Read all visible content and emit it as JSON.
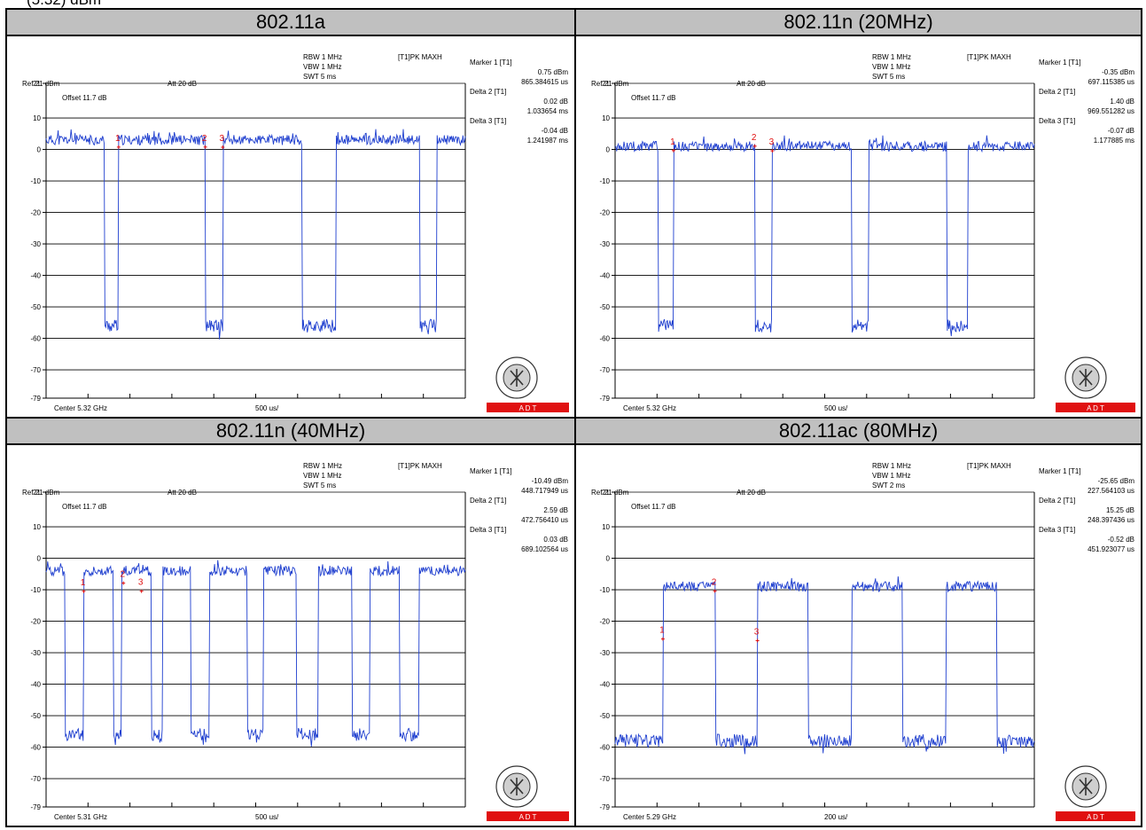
{
  "top_fragment": "(5.32) dBm",
  "panels": [
    {
      "title": "802.11a",
      "ref": "Ref 21 dBm",
      "att": "Att  20 dB",
      "offset": "Offset 11.7 dB",
      "rbw": "RBW 1 MHz",
      "vbw": "VBW 1 MHz",
      "swt": "SWT 5 ms",
      "trace_label": "[T1]PK MAXH",
      "center": "Center 5.32 GHz",
      "span_per_div": "500 us/",
      "markers": [
        {
          "label": "Marker 1 [T1]",
          "v1": "0.75 dBm",
          "v2": "865.384615 us"
        },
        {
          "label": "Delta 2 [T1]",
          "v1": "0.02 dB",
          "v2": "1.033654 ms"
        },
        {
          "label": "Delta 3 [T1]",
          "v1": "-0.04 dB",
          "v2": "1.241987 ms"
        }
      ],
      "logo": "A  D  T"
    },
    {
      "title": "802.11n (20MHz)",
      "ref": "Ref 21 dBm",
      "att": "Att  20 dB",
      "offset": "Offset 11.7 dB",
      "rbw": "RBW 1 MHz",
      "vbw": "VBW 1 MHz",
      "swt": "SWT 5 ms",
      "trace_label": "[T1]PK MAXH",
      "center": "Center 5.32 GHz",
      "span_per_div": "500 us/",
      "markers": [
        {
          "label": "Marker 1 [T1]",
          "v1": "-0.35 dBm",
          "v2": "697.115385 us"
        },
        {
          "label": "Delta 2 [T1]",
          "v1": "1.40 dB",
          "v2": "969.551282 us"
        },
        {
          "label": "Delta 3 [T1]",
          "v1": "-0.07 dB",
          "v2": "1.177885 ms"
        }
      ],
      "logo": "A  D  T"
    },
    {
      "title": "802.11n (40MHz)",
      "ref": "Ref 21 dBm",
      "att": "Att  20 dB",
      "offset": "Offset 11.7 dB",
      "rbw": "RBW 1 MHz",
      "vbw": "VBW 1 MHz",
      "swt": "SWT 5 ms",
      "trace_label": "[T1]PK MAXH",
      "center": "Center 5.31 GHz",
      "span_per_div": "500 us/",
      "markers": [
        {
          "label": "Marker 1 [T1]",
          "v1": "-10.49 dBm",
          "v2": "448.717949 us"
        },
        {
          "label": "Delta 2 [T1]",
          "v1": "2.59 dB",
          "v2": "472.756410 us"
        },
        {
          "label": "Delta 3 [T1]",
          "v1": "0.03 dB",
          "v2": "689.102564 us"
        }
      ],
      "logo": "A  D  T"
    },
    {
      "title": "802.11ac (80MHz)",
      "ref": "Ref 21 dBm",
      "att": "Att  20 dB",
      "offset": "Offset 11.7 dB",
      "rbw": "RBW 1 MHz",
      "vbw": "VBW 1 MHz",
      "swt": "SWT 2 ms",
      "trace_label": "[T1]PK MAXH",
      "center": "Center 5.29 GHz",
      "span_per_div": "200 us/",
      "markers": [
        {
          "label": "Marker 1 [T1]",
          "v1": "-25.65 dBm",
          "v2": "227.564103 us"
        },
        {
          "label": "Delta 2 [T1]",
          "v1": "15.25 dB",
          "v2": "248.397436 us"
        },
        {
          "label": "Delta 3 [T1]",
          "v1": "-0.52 dB",
          "v2": "451.923077 us"
        }
      ],
      "logo": "A  D  T"
    }
  ],
  "colors": {
    "trace": "#1f3fcf",
    "marker": "#e01010",
    "grid": "#000000",
    "header_bg": "#c0c0c0",
    "logo_red": "#e01010"
  },
  "chart_data": [
    {
      "type": "line",
      "title": "802.11a",
      "y_ticks": [
        21,
        10,
        0,
        -10,
        -20,
        -30,
        -40,
        -50,
        -60,
        -70,
        -79
      ],
      "ylim": [
        -79,
        21
      ],
      "xlim": [
        0,
        5000
      ],
      "x_unit": "us",
      "high_level_db": 3,
      "low_level_db": -56,
      "bursts": [
        [
          0,
          700
        ],
        [
          865,
          1900
        ],
        [
          2107,
          3050
        ],
        [
          3460,
          4460
        ],
        [
          4660,
          5000
        ]
      ],
      "markers": [
        {
          "n": "1",
          "x": 865,
          "y": 0.75
        },
        {
          "n": "2",
          "x": 1899,
          "y": 0.77
        },
        {
          "n": "3",
          "x": 2107,
          "y": 0.71
        }
      ]
    },
    {
      "type": "line",
      "title": "802.11n (20MHz)",
      "y_ticks": [
        21,
        10,
        0,
        -10,
        -20,
        -30,
        -40,
        -50,
        -60,
        -70,
        -79
      ],
      "ylim": [
        -79,
        21
      ],
      "xlim": [
        0,
        5000
      ],
      "x_unit": "us",
      "high_level_db": 1,
      "low_level_db": -56,
      "bursts": [
        [
          0,
          510
        ],
        [
          697,
          1670
        ],
        [
          1875,
          2820
        ],
        [
          3020,
          3960
        ],
        [
          4210,
          5000
        ]
      ],
      "markers": [
        {
          "n": "1",
          "x": 697,
          "y": -0.35
        },
        {
          "n": "2",
          "x": 1667,
          "y": 1.05
        },
        {
          "n": "3",
          "x": 1875,
          "y": -0.42
        }
      ]
    },
    {
      "type": "line",
      "title": "802.11n (40MHz)",
      "y_ticks": [
        21,
        10,
        0,
        -10,
        -20,
        -30,
        -40,
        -50,
        -60,
        -70,
        -79
      ],
      "ylim": [
        -79,
        21
      ],
      "xlim": [
        0,
        5000
      ],
      "x_unit": "us",
      "high_level_db": -4,
      "low_level_db": -56,
      "bursts": [
        [
          0,
          230
        ],
        [
          449,
          800
        ],
        [
          900,
          1250
        ],
        [
          1390,
          1730
        ],
        [
          1950,
          2400
        ],
        [
          2590,
          2990
        ],
        [
          3250,
          3650
        ],
        [
          3860,
          4220
        ],
        [
          4450,
          5000
        ]
      ],
      "markers": [
        {
          "n": "1",
          "x": 449,
          "y": -10.49
        },
        {
          "n": "2",
          "x": 922,
          "y": -7.9
        },
        {
          "n": "3",
          "x": 1138,
          "y": -10.46
        }
      ]
    },
    {
      "type": "line",
      "title": "802.11ac (80MHz)",
      "y_ticks": [
        21,
        10,
        0,
        -10,
        -20,
        -30,
        -40,
        -50,
        -60,
        -70,
        -79
      ],
      "ylim": [
        -79,
        21
      ],
      "xlim": [
        0,
        2000
      ],
      "x_unit": "us",
      "high_level_db": -9,
      "low_level_db": -58,
      "bursts": [
        [
          228,
          480
        ],
        [
          680,
          920
        ],
        [
          1130,
          1370
        ],
        [
          1580,
          1820
        ]
      ],
      "markers": [
        {
          "n": "1",
          "x": 228,
          "y": -25.65
        },
        {
          "n": "2",
          "x": 476,
          "y": -10.4
        },
        {
          "n": "3",
          "x": 679,
          "y": -26.17
        }
      ]
    }
  ]
}
